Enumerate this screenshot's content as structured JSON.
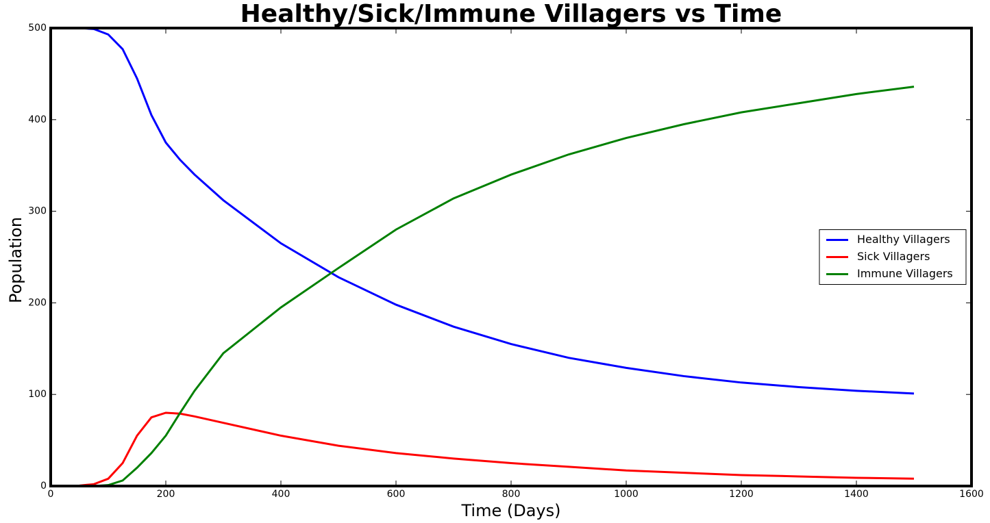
{
  "chart_data": {
    "type": "line",
    "title": "Healthy/Sick/Immune Villagers vs Time",
    "x_label": "Time (Days)",
    "y_label": "Population",
    "x": [
      0,
      50,
      75,
      100,
      125,
      150,
      175,
      200,
      225,
      250,
      300,
      400,
      500,
      600,
      700,
      800,
      900,
      1000,
      1100,
      1200,
      1300,
      1400,
      1500
    ],
    "series": [
      {
        "name": "Healthy Villagers",
        "color": "#0000ff",
        "values": [
          500,
          500,
          499,
          493,
          477,
          445,
          405,
          375,
          356,
          340,
          312,
          265,
          228,
          198,
          174,
          155,
          140,
          129,
          120,
          113,
          108,
          104,
          101
        ]
      },
      {
        "name": "Sick Villagers",
        "color": "#ff0000",
        "values": [
          0,
          0.5,
          2,
          8,
          25,
          55,
          75,
          80,
          79,
          76,
          69,
          55,
          44,
          36,
          30,
          25,
          21,
          17,
          14.5,
          12,
          10.5,
          9,
          8
        ]
      },
      {
        "name": "Immune Villagers",
        "color": "#008000",
        "values": [
          0,
          0,
          0,
          1,
          6,
          20,
          36,
          55,
          80,
          104,
          145,
          195,
          238,
          280,
          314,
          340,
          362,
          380,
          395,
          408,
          418,
          428,
          436
        ]
      }
    ],
    "xlim": [
      0,
      1600
    ],
    "xticks": [
      0,
      200,
      400,
      600,
      800,
      1000,
      1200,
      1400,
      1600
    ],
    "ylim": [
      0,
      500
    ],
    "yticks": [
      0,
      100,
      200,
      300,
      400,
      500
    ],
    "legend": "center right"
  }
}
